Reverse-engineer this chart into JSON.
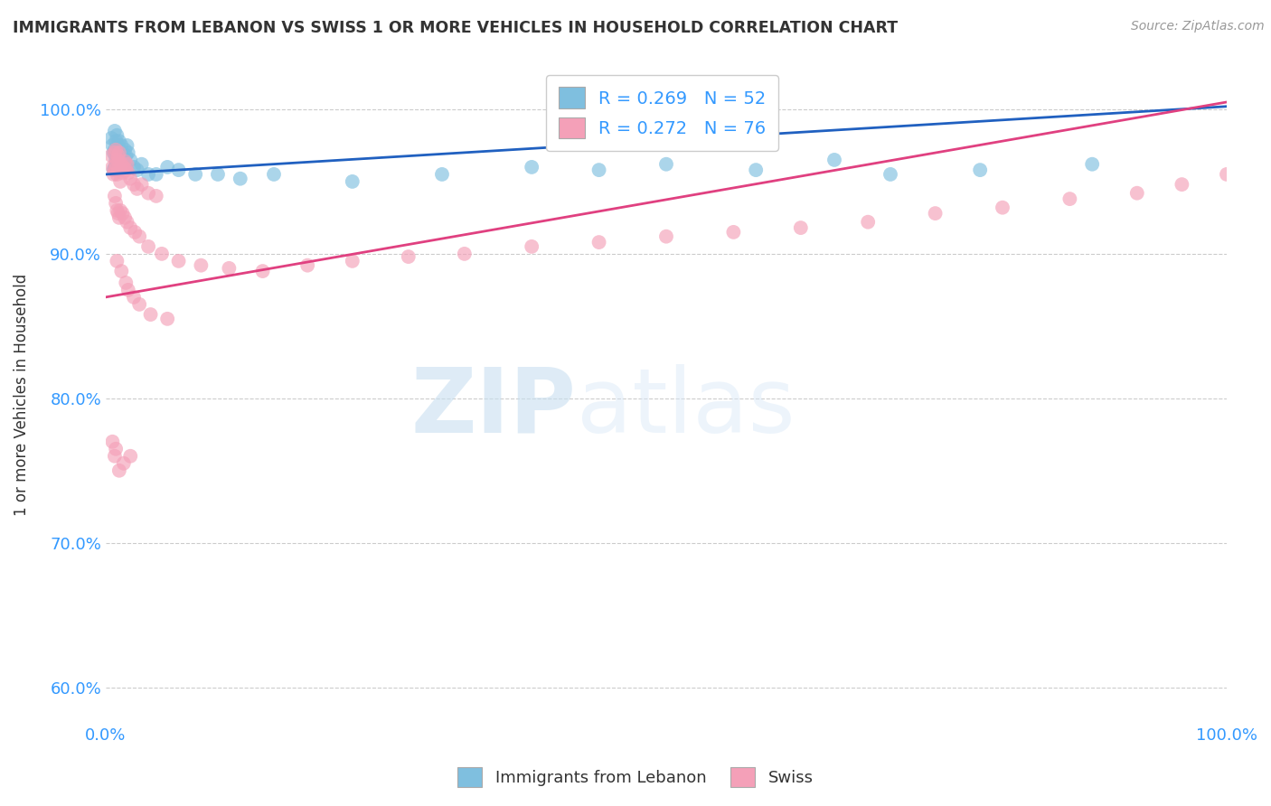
{
  "title": "IMMIGRANTS FROM LEBANON VS SWISS 1 OR MORE VEHICLES IN HOUSEHOLD CORRELATION CHART",
  "source": "Source: ZipAtlas.com",
  "ylabel": "1 or more Vehicles in Household",
  "yticks": [
    "60.0%",
    "70.0%",
    "80.0%",
    "90.0%",
    "100.0%"
  ],
  "ytick_vals": [
    0.6,
    0.7,
    0.8,
    0.9,
    1.0
  ],
  "xlim": [
    0.0,
    1.0
  ],
  "ylim": [
    0.575,
    1.03
  ],
  "legend_labels": [
    "Immigrants from Lebanon",
    "Swiss"
  ],
  "legend_R": [
    0.269,
    0.272
  ],
  "legend_N": [
    52,
    76
  ],
  "blue_color": "#7fbfdf",
  "pink_color": "#f4a0b8",
  "blue_line_color": "#2060c0",
  "pink_line_color": "#e04080",
  "title_color": "#333333",
  "legend_text_color": "#3399ff",
  "axis_tick_color": "#3399ff",
  "grid_color": "#cccccc",
  "blue_scatter_x": [
    0.005,
    0.006,
    0.007,
    0.008,
    0.008,
    0.009,
    0.009,
    0.01,
    0.01,
    0.011,
    0.011,
    0.012,
    0.012,
    0.013,
    0.013,
    0.014,
    0.015,
    0.016,
    0.017,
    0.018,
    0.019,
    0.02,
    0.022,
    0.025,
    0.028,
    0.032,
    0.038,
    0.045,
    0.055,
    0.065,
    0.08,
    0.1,
    0.12,
    0.15,
    0.01,
    0.008,
    0.007,
    0.009,
    0.011,
    0.013,
    0.015,
    0.018,
    0.22,
    0.3,
    0.38,
    0.44,
    0.5,
    0.58,
    0.65,
    0.7,
    0.78,
    0.88
  ],
  "blue_scatter_y": [
    0.98,
    0.975,
    0.97,
    0.985,
    0.972,
    0.968,
    0.978,
    0.982,
    0.97,
    0.975,
    0.965,
    0.972,
    0.978,
    0.968,
    0.96,
    0.975,
    0.97,
    0.965,
    0.972,
    0.968,
    0.975,
    0.97,
    0.965,
    0.96,
    0.958,
    0.962,
    0.955,
    0.955,
    0.96,
    0.958,
    0.955,
    0.955,
    0.952,
    0.955,
    0.963,
    0.96,
    0.958,
    0.965,
    0.962,
    0.958,
    0.965,
    0.96,
    0.95,
    0.955,
    0.96,
    0.958,
    0.962,
    0.958,
    0.965,
    0.955,
    0.958,
    0.962
  ],
  "pink_scatter_x": [
    0.005,
    0.006,
    0.007,
    0.008,
    0.008,
    0.009,
    0.009,
    0.01,
    0.01,
    0.011,
    0.011,
    0.012,
    0.012,
    0.013,
    0.013,
    0.014,
    0.015,
    0.016,
    0.017,
    0.018,
    0.019,
    0.02,
    0.022,
    0.025,
    0.028,
    0.032,
    0.038,
    0.045,
    0.008,
    0.009,
    0.01,
    0.011,
    0.012,
    0.013,
    0.015,
    0.017,
    0.019,
    0.022,
    0.026,
    0.03,
    0.038,
    0.05,
    0.065,
    0.085,
    0.11,
    0.14,
    0.18,
    0.22,
    0.27,
    0.32,
    0.38,
    0.44,
    0.5,
    0.56,
    0.62,
    0.68,
    0.74,
    0.8,
    0.86,
    0.92,
    0.96,
    1.0,
    0.02,
    0.025,
    0.03,
    0.04,
    0.055,
    0.018,
    0.014,
    0.01,
    0.008,
    0.006,
    0.012,
    0.009,
    0.016,
    0.022
  ],
  "pink_scatter_y": [
    0.968,
    0.96,
    0.955,
    0.97,
    0.958,
    0.962,
    0.972,
    0.965,
    0.955,
    0.968,
    0.958,
    0.964,
    0.97,
    0.958,
    0.95,
    0.962,
    0.956,
    0.96,
    0.964,
    0.958,
    0.962,
    0.956,
    0.952,
    0.948,
    0.945,
    0.948,
    0.942,
    0.94,
    0.94,
    0.935,
    0.93,
    0.928,
    0.925,
    0.93,
    0.928,
    0.925,
    0.922,
    0.918,
    0.915,
    0.912,
    0.905,
    0.9,
    0.895,
    0.892,
    0.89,
    0.888,
    0.892,
    0.895,
    0.898,
    0.9,
    0.905,
    0.908,
    0.912,
    0.915,
    0.918,
    0.922,
    0.928,
    0.932,
    0.938,
    0.942,
    0.948,
    0.955,
    0.875,
    0.87,
    0.865,
    0.858,
    0.855,
    0.88,
    0.888,
    0.895,
    0.76,
    0.77,
    0.75,
    0.765,
    0.755,
    0.76
  ],
  "blue_line_x0": 0.0,
  "blue_line_x1": 1.0,
  "blue_line_y0": 0.955,
  "blue_line_y1": 1.002,
  "pink_line_x0": 0.0,
  "pink_line_x1": 1.0,
  "pink_line_y0": 0.87,
  "pink_line_y1": 1.005
}
